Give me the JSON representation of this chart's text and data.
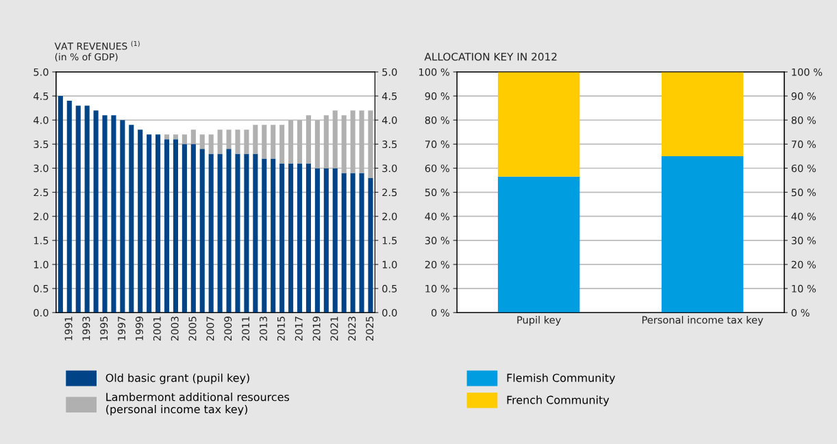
{
  "chart_data": [
    {
      "type": "bar",
      "stacked": true,
      "ylabel": "VAT REVENUES $^{(1)}$\n(in % of GDP)",
      "categories": [
        null,
        "1991",
        null,
        "1993",
        null,
        "1995",
        null,
        "1997",
        null,
        "1999",
        null,
        "2001",
        null,
        "2003",
        null,
        "2005",
        null,
        "2007",
        null,
        "2009",
        null,
        "2011",
        null,
        "2013",
        null,
        "2015",
        null,
        "2017",
        null,
        "2019",
        null,
        "2021",
        null,
        "2023",
        null,
        "2025"
      ],
      "series": [
        {
          "name": "Old basic grant (pupil key)",
          "color": "#004488",
          "values": [
            4.5,
            4.4,
            4.3,
            4.3,
            4.2,
            4.1,
            4.1,
            4.0,
            3.9,
            3.8,
            3.7,
            3.7,
            3.6,
            3.6,
            3.5,
            3.5,
            3.4,
            3.3,
            3.3,
            3.4,
            3.3,
            3.3,
            3.3,
            3.2,
            3.2,
            3.1,
            3.1,
            3.1,
            3.1,
            3.0,
            3.0,
            3.0,
            2.9,
            2.9,
            2.9,
            2.8
          ]
        },
        {
          "name": "Lambermont additional resources\n(personal income tax key)",
          "color": "#b0b0b0",
          "values": [
            0,
            0,
            0,
            0,
            0,
            0,
            0,
            0,
            0,
            0,
            0,
            0,
            0.1,
            0.1,
            0.2,
            0.3,
            0.3,
            0.4,
            0.5,
            0.4,
            0.5,
            0.5,
            0.6,
            0.7,
            0.7,
            0.8,
            0.9,
            0.9,
            1.0,
            1.0,
            1.1,
            1.2,
            1.2,
            1.3,
            1.3,
            1.4
          ]
        }
      ],
      "ylim": [
        0,
        5
      ],
      "yticks": [
        {
          "value": 0,
          "label": "0.0"
        },
        {
          "value": 0.5,
          "label": "0.5"
        },
        {
          "value": 1,
          "label": "1.0"
        },
        {
          "value": 1.5,
          "label": "1.5"
        },
        {
          "value": 2,
          "label": "2.0"
        },
        {
          "value": 2.5,
          "label": "2.5"
        },
        {
          "value": 3,
          "label": "3.0"
        },
        {
          "value": 3.5,
          "label": "3.5"
        },
        {
          "value": 4,
          "label": "4.0"
        },
        {
          "value": 4.5,
          "label": "4.5"
        },
        {
          "value": 5,
          "label": "5.0"
        }
      ],
      "y2lim": [
        0,
        5
      ],
      "y2ticks": [
        {
          "value": 0,
          "label": "0.0"
        },
        {
          "value": 0.5,
          "label": "0.5"
        },
        {
          "value": 1,
          "label": "1.0"
        },
        {
          "value": 1.5,
          "label": "1.5"
        },
        {
          "value": 2,
          "label": "2.0"
        },
        {
          "value": 2.5,
          "label": "2.5"
        },
        {
          "value": 3,
          "label": "3.0"
        },
        {
          "value": 3.5,
          "label": "3.5"
        },
        {
          "value": 4,
          "label": "4.0"
        },
        {
          "value": 4.5,
          "label": "4.5"
        },
        {
          "value": 5,
          "label": "5.0"
        }
      ],
      "grid": "y",
      "legend": "bottom"
    },
    {
      "type": "bar",
      "stacked": true,
      "title": "ALLOCATION KEY IN 2012",
      "categories": [
        "Pupil key",
        "Personal income tax key"
      ],
      "series": [
        {
          "name": "Flemish Community",
          "color": "#009ee0",
          "values": [
            56.5,
            65
          ]
        },
        {
          "name": "French Community",
          "color": "#ffcc00",
          "values": [
            43.5,
            35
          ]
        }
      ],
      "ylim": [
        0,
        100
      ],
      "yticks": [
        {
          "value": 0,
          "label": "0 %"
        },
        {
          "value": 10,
          "label": "10 %"
        },
        {
          "value": 20,
          "label": "20 %"
        },
        {
          "value": 30,
          "label": "30 %"
        },
        {
          "value": 40,
          "label": "40 %"
        },
        {
          "value": 50,
          "label": "50 %"
        },
        {
          "value": 60,
          "label": "60 %"
        },
        {
          "value": 70,
          "label": "70 %"
        },
        {
          "value": 80,
          "label": "80 %"
        },
        {
          "value": 90,
          "label": "90 %"
        },
        {
          "value": 100,
          "label": "100 %"
        }
      ],
      "y2lim": [
        0,
        100
      ],
      "y2ticks": [
        {
          "value": 0,
          "label": "0 %"
        },
        {
          "value": 10,
          "label": "10 %"
        },
        {
          "value": 20,
          "label": "20 %"
        },
        {
          "value": 30,
          "label": "30 %"
        },
        {
          "value": 40,
          "label": "40 %"
        },
        {
          "value": 50,
          "label": "50 %"
        },
        {
          "value": 60,
          "label": "60 %"
        },
        {
          "value": 70,
          "label": "70 %"
        },
        {
          "value": 80,
          "label": "80 %"
        },
        {
          "value": 90,
          "label": "90 %"
        },
        {
          "value": 100,
          "label": "100 %"
        }
      ],
      "grid": "y",
      "legend": "bottom"
    }
  ]
}
